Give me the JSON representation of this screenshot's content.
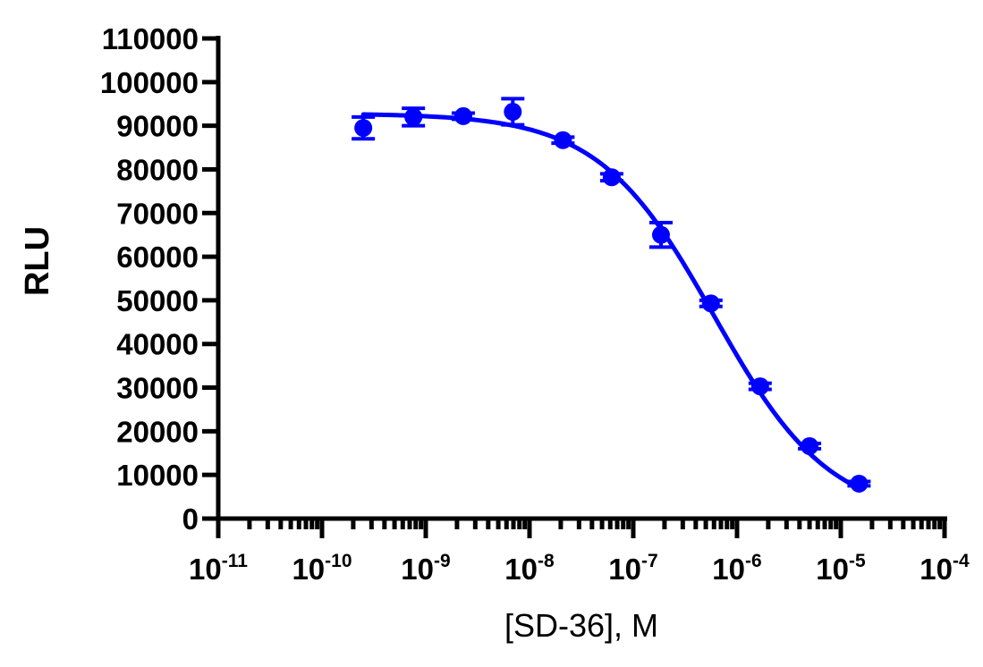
{
  "chart_data": {
    "type": "scatter",
    "title": "",
    "xlabel": "[SD-36], M",
    "ylabel": "RLU",
    "x_scale": "log",
    "xlim": [
      1e-11,
      0.0001
    ],
    "ylim": [
      0,
      110000
    ],
    "y_ticks": [
      0,
      10000,
      20000,
      30000,
      40000,
      50000,
      60000,
      70000,
      80000,
      90000,
      100000,
      110000
    ],
    "x_ticks": [
      {
        "base": "10",
        "exp": "-11",
        "value": 1e-11
      },
      {
        "base": "10",
        "exp": "-10",
        "value": 1e-10
      },
      {
        "base": "10",
        "exp": "-9",
        "value": 1e-09
      },
      {
        "base": "10",
        "exp": "-8",
        "value": 1e-08
      },
      {
        "base": "10",
        "exp": "-7",
        "value": 1e-07
      },
      {
        "base": "10",
        "exp": "-6",
        "value": 1e-06
      },
      {
        "base": "10",
        "exp": "-5",
        "value": 1e-05
      },
      {
        "base": "10",
        "exp": "-4",
        "value": 0.0001
      }
    ],
    "color": "#0000ff",
    "grid": false,
    "series": [
      {
        "x": [
          2.5e-10,
          7.6e-10,
          2.3e-09,
          6.9e-09,
          2.1e-08,
          6.2e-08,
          1.85e-07,
          5.6e-07,
          1.67e-06,
          5e-06,
          1.5e-05
        ],
        "y": [
          89500,
          92000,
          92200,
          93200,
          86700,
          78200,
          65000,
          49300,
          30300,
          16600,
          8000
        ],
        "err": [
          2500,
          2000,
          700,
          3000,
          700,
          800,
          2800,
          700,
          700,
          600,
          500
        ]
      }
    ],
    "fit": {
      "type": "four-parameter logistic",
      "top": 92800,
      "bottom": 0,
      "log_ec50": -6.22,
      "hill_slope": -0.78,
      "x_range": [
        2.5e-10,
        1.5e-05
      ]
    }
  }
}
